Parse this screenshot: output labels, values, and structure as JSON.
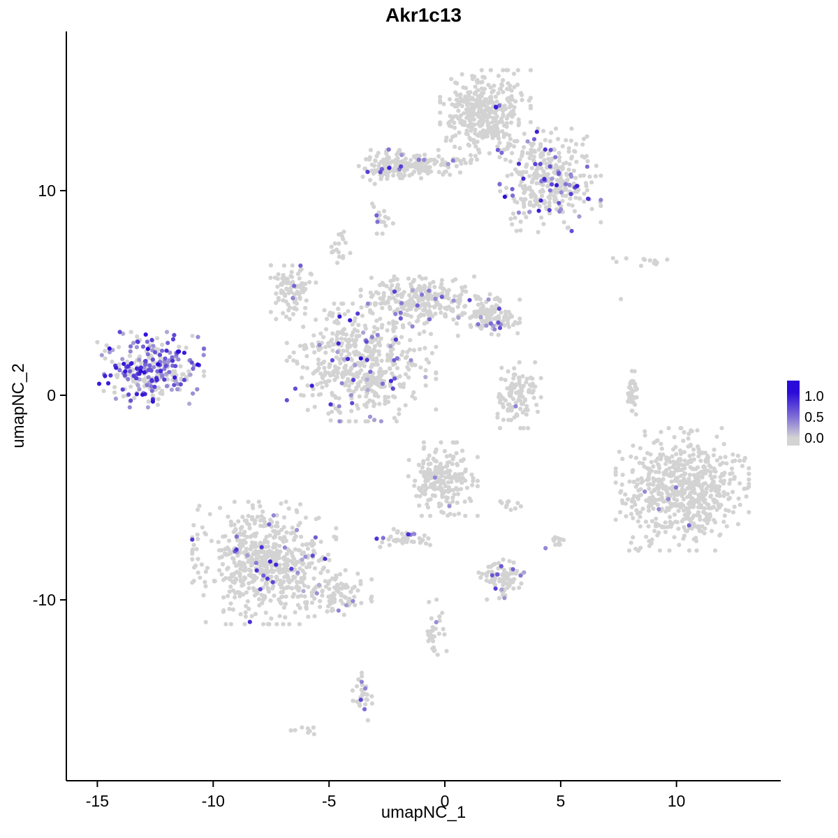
{
  "chart_data": {
    "type": "scatter",
    "title": "Akr1c13",
    "xlabel": "umapNC_1",
    "ylabel": "umapNC_2",
    "xlim": [
      -16.34,
      14.5
    ],
    "ylim": [
      -18.84,
      17.78
    ],
    "grid": false,
    "background": "#ffffff",
    "x_ticks": [
      {
        "value": -15,
        "label": "-15"
      },
      {
        "value": -10,
        "label": "-10"
      },
      {
        "value": -5,
        "label": "-5"
      },
      {
        "value": 0,
        "label": "0"
      },
      {
        "value": 5,
        "label": "5"
      },
      {
        "value": 10,
        "label": "10"
      }
    ],
    "y_ticks": [
      {
        "value": 10,
        "label": "10"
      },
      {
        "value": 0,
        "label": "0"
      },
      {
        "value": -10,
        "label": "-10"
      }
    ],
    "color_scale": {
      "low": "#d3d3d3",
      "high": "#2a0ad8",
      "description": "expression 0.0 gray to 1.0 blue"
    },
    "legend": {
      "position": "right",
      "labels": [
        "1.0",
        "0.5",
        "0.0"
      ]
    },
    "clusters": [
      {
        "name": "top-main",
        "cx": 1.75,
        "cy": 13.7,
        "sx": 0.85,
        "sy": 0.95,
        "n": 400,
        "expr_frac": 0.025,
        "expr_min": 0.2,
        "expr_max": 0.9
      },
      {
        "name": "top-right",
        "cx": 4.55,
        "cy": 10.5,
        "sx": 0.95,
        "sy": 1.1,
        "n": 340,
        "expr_frac": 0.13,
        "expr_min": 0.25,
        "expr_max": 1.0
      },
      {
        "name": "top-left-arm",
        "cx": -1.3,
        "cy": 11.25,
        "sx": 1.05,
        "sy": 0.32,
        "n": 150,
        "expr_frac": 0.05,
        "expr_min": 0.2,
        "expr_max": 0.8
      },
      {
        "name": "top-left-arm-knot",
        "cx": -2.6,
        "cy": 11.2,
        "sx": 0.32,
        "sy": 0.38,
        "n": 60,
        "expr_frac": 0.1,
        "expr_min": 0.3,
        "expr_max": 0.9
      },
      {
        "name": "top-left-small-blob",
        "cx": -2.8,
        "cy": 8.7,
        "sx": 0.28,
        "sy": 0.35,
        "n": 16,
        "expr_frac": 0.12,
        "expr_min": 0.4,
        "expr_max": 0.7
      },
      {
        "name": "left-cluster",
        "cx": -12.7,
        "cy": 1.25,
        "sx": 1.0,
        "sy": 0.8,
        "n": 290,
        "expr_frac": 0.5,
        "expr_min": 0.2,
        "expr_max": 1.0
      },
      {
        "name": "central-left-arm",
        "cx": -6.6,
        "cy": 5.15,
        "sx": 0.45,
        "sy": 0.62,
        "n": 100,
        "expr_frac": 0.04,
        "expr_min": 0.2,
        "expr_max": 0.7
      },
      {
        "name": "central-upper",
        "cx": -1.1,
        "cy": 4.65,
        "sx": 1.1,
        "sy": 0.5,
        "n": 270,
        "expr_frac": 0.04,
        "expr_min": 0.2,
        "expr_max": 0.8
      },
      {
        "name": "central-right-arm",
        "cx": 1.9,
        "cy": 3.9,
        "sx": 0.58,
        "sy": 0.45,
        "n": 130,
        "expr_frac": 0.06,
        "expr_min": 0.25,
        "expr_max": 0.9
      },
      {
        "name": "central-main",
        "cx": -3.6,
        "cy": 1.6,
        "sx": 1.4,
        "sy": 1.25,
        "n": 520,
        "expr_frac": 0.09,
        "expr_min": 0.2,
        "expr_max": 1.0
      },
      {
        "name": "central-stem",
        "cx": -4.5,
        "cy": 7.2,
        "sx": 0.18,
        "sy": 0.5,
        "n": 18,
        "expr_frac": 0.0,
        "expr_min": 0.0,
        "expr_max": 0.0
      },
      {
        "name": "mid-right-small",
        "cx": 3.0,
        "cy": 0.0,
        "sx": 0.5,
        "sy": 0.7,
        "n": 110,
        "expr_frac": 0.015,
        "expr_min": 0.2,
        "expr_max": 0.5
      },
      {
        "name": "right-thin-arc",
        "cx": 8.1,
        "cy": 0.15,
        "sx": 0.1,
        "sy": 0.5,
        "n": 35,
        "expr_frac": 0.0,
        "expr_min": 0.0,
        "expr_max": 0.0
      },
      {
        "name": "far-right-sparse-row",
        "cx": 8.5,
        "cy": 6.6,
        "sx": 0.8,
        "sy": 0.12,
        "n": 12,
        "expr_frac": 0.0,
        "expr_min": 0.0,
        "expr_max": 0.0
      },
      {
        "name": "right-large",
        "cx": 10.25,
        "cy": -4.6,
        "sx": 1.25,
        "sy": 1.3,
        "n": 620,
        "expr_frac": 0.004,
        "expr_min": 0.3,
        "expr_max": 0.6
      },
      {
        "name": "bottom-left",
        "cx": -7.8,
        "cy": -8.2,
        "sx": 1.35,
        "sy": 1.3,
        "n": 620,
        "expr_frac": 0.045,
        "expr_min": 0.2,
        "expr_max": 0.9
      },
      {
        "name": "bottom-left-arm",
        "cx": -5.0,
        "cy": -9.7,
        "sx": 0.8,
        "sy": 0.5,
        "n": 100,
        "expr_frac": 0.03,
        "expr_min": 0.2,
        "expr_max": 0.6
      },
      {
        "name": "bottom-center",
        "cx": -0.15,
        "cy": -4.1,
        "sx": 0.68,
        "sy": 0.78,
        "n": 210,
        "expr_frac": 0.01,
        "expr_min": 0.2,
        "expr_max": 0.5
      },
      {
        "name": "below-center-small",
        "cx": -1.9,
        "cy": -7.0,
        "sx": 0.55,
        "sy": 0.22,
        "n": 40,
        "expr_frac": 0.1,
        "expr_min": 0.3,
        "expr_max": 0.9
      },
      {
        "name": "bottom-small",
        "cx": 2.5,
        "cy": -8.95,
        "sx": 0.45,
        "sy": 0.45,
        "n": 90,
        "expr_frac": 0.06,
        "expr_min": 0.25,
        "expr_max": 0.8
      },
      {
        "name": "bottom-trail",
        "cx": -0.3,
        "cy": -11.6,
        "sx": 0.22,
        "sy": 0.7,
        "n": 30,
        "expr_frac": 0.04,
        "expr_min": 0.3,
        "expr_max": 0.7
      },
      {
        "name": "bottom-blob",
        "cx": -3.55,
        "cy": -14.7,
        "sx": 0.2,
        "sy": 0.65,
        "n": 32,
        "expr_frac": 0.2,
        "expr_min": 0.35,
        "expr_max": 0.9
      },
      {
        "name": "bottom-tiny",
        "cx": -6.0,
        "cy": -16.4,
        "sx": 0.28,
        "sy": 0.12,
        "n": 8,
        "expr_frac": 0.0,
        "expr_min": 0.0,
        "expr_max": 0.0
      },
      {
        "name": "small-right-mid",
        "cx": 4.9,
        "cy": -7.2,
        "sx": 0.24,
        "sy": 0.2,
        "n": 14,
        "expr_frac": 0.08,
        "expr_min": 0.3,
        "expr_max": 0.6
      },
      {
        "name": "tiny-above-bottom-small",
        "cx": 2.9,
        "cy": -5.3,
        "sx": 0.22,
        "sy": 0.16,
        "n": 10,
        "expr_frac": 0.0,
        "expr_min": 0.0,
        "expr_max": 0.0
      }
    ],
    "extra_points": [
      [
        7.6,
        4.7,
        0
      ],
      [
        -10.9,
        2.9,
        0
      ]
    ]
  }
}
